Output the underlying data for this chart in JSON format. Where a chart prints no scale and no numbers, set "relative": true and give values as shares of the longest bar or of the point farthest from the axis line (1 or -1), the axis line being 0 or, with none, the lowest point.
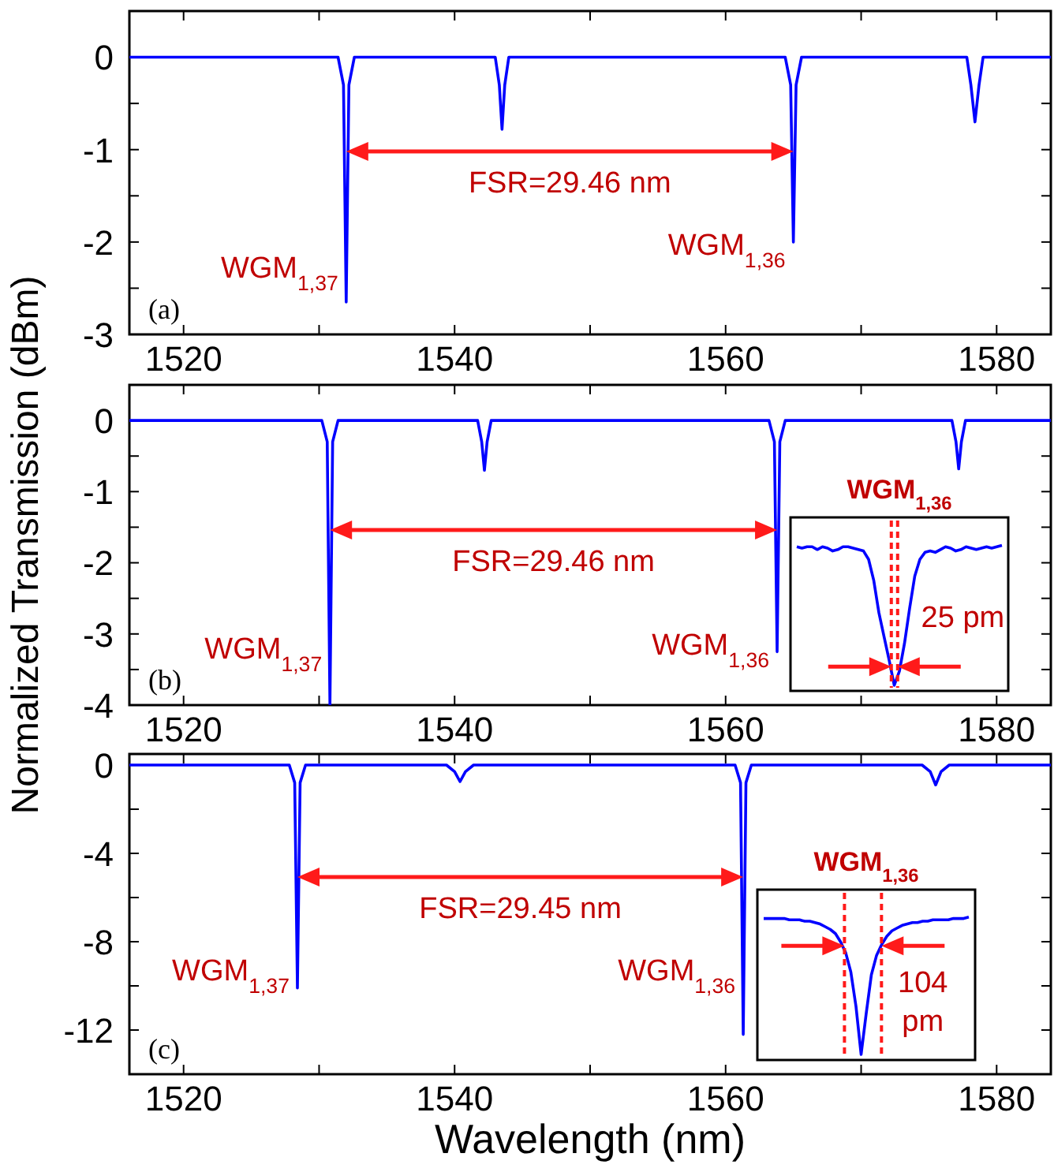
{
  "chart_data": [
    {
      "type": "line",
      "xlim": [
        1516,
        1584
      ],
      "xticks": [
        1520,
        {
          "value": 1530,
          "label": null
        },
        1540,
        {
          "value": 1550,
          "label": null
        },
        1560,
        {
          "value": 1570,
          "label": null
        },
        1580
      ],
      "ylim": [
        -3,
        0.5
      ],
      "yticks": [
        0,
        {
          "value": -0.5,
          "label": null
        },
        -1,
        {
          "value": -1.5,
          "label": null
        },
        -2,
        {
          "value": -2.5,
          "label": null
        },
        -3
      ],
      "x": [
        1516,
        1531.4,
        1531.8,
        1532.0,
        1532.2,
        1532.6,
        1543.0,
        1543.3,
        1543.5,
        1543.7,
        1544.0,
        1564.4,
        1564.8,
        1565.0,
        1565.2,
        1565.6,
        1577.8,
        1578.1,
        1578.4,
        1578.7,
        1579.0,
        1584
      ],
      "series": [
        {
          "color": "#0000ff",
          "values": [
            0,
            0,
            -0.3,
            -2.65,
            -0.3,
            0,
            0,
            -0.3,
            -0.78,
            -0.3,
            0,
            0,
            -0.3,
            -2.0,
            -0.3,
            0,
            0,
            -0.3,
            -0.7,
            -0.3,
            0,
            0
          ]
        }
      ],
      "annotations": [
        {
          "text": "WGM$_{1,37}$",
          "x": 1532.0,
          "y": -2.25
        },
        {
          "text": "WGM$_{1,36}$",
          "x": 1565.0,
          "y": -2.0
        },
        "FSR=29.46 nm",
        "(a)"
      ]
    },
    {
      "type": "line",
      "ylabel": "Normalized Transmission (dBm)",
      "xlim": [
        1516,
        1584
      ],
      "xticks": [
        1520,
        {
          "value": 1530,
          "label": null
        },
        1540,
        {
          "value": 1550,
          "label": null
        },
        1560,
        {
          "value": 1570,
          "label": null
        },
        1580
      ],
      "ylim": [
        -4,
        0.5
      ],
      "yticks": [
        0,
        {
          "value": -0.5,
          "label": null
        },
        -1,
        {
          "value": -1.5,
          "label": null
        },
        -2,
        {
          "value": -2.5,
          "label": null
        },
        -3,
        {
          "value": -3.5,
          "label": null
        },
        -4
      ],
      "x": [
        1516,
        1530.2,
        1530.6,
        1530.8,
        1531.0,
        1531.4,
        1541.7,
        1542.0,
        1542.2,
        1542.4,
        1542.7,
        1563.2,
        1563.6,
        1563.8,
        1564.0,
        1564.4,
        1576.7,
        1577.0,
        1577.2,
        1577.4,
        1577.7,
        1584
      ],
      "series": [
        {
          "color": "#0000ff",
          "values": [
            0,
            0,
            -0.3,
            -4.0,
            -0.3,
            0,
            0,
            -0.3,
            -0.7,
            -0.3,
            0,
            0,
            -0.3,
            -3.25,
            -0.3,
            0,
            0,
            -0.3,
            -0.68,
            -0.3,
            0,
            0
          ]
        }
      ],
      "annotations": [
        {
          "text": "WGM$_{1,37}$",
          "x": 1530.8,
          "y": -3.3
        },
        {
          "text": "WGM$_{1,36}$",
          "x": 1563.8,
          "y": -3.25
        },
        "FSR=29.46 nm",
        "(b)"
      ]
    },
    {
      "type": "line",
      "relative": true,
      "title": "WGM$_{1,36}$",
      "categories": [
        null,
        null,
        null,
        null,
        null,
        null,
        null,
        null,
        null,
        null,
        null,
        null,
        null,
        null,
        null,
        null,
        null,
        null,
        null,
        null,
        null,
        null,
        null,
        null,
        null,
        null,
        null,
        null,
        null,
        null,
        null,
        null,
        null,
        null,
        null,
        null,
        null,
        null,
        null,
        null,
        null
      ],
      "series": [
        {
          "color": "#0000ff",
          "values": [
            0.99,
            0.98,
            0.99,
            0.99,
            0.97,
            0.99,
            0.98,
            0.96,
            0.97,
            0.99,
            0.99,
            0.98,
            0.97,
            0.96,
            0.9,
            0.75,
            0.52,
            0.35,
            0.18,
            0,
            0.1,
            0.3,
            0.55,
            0.78,
            0.9,
            0.95,
            0.96,
            0.95,
            0.97,
            0.99,
            0.98,
            0.96,
            0.97,
            0.99,
            0.98,
            0.97,
            0.98,
            0.99,
            0.98,
            0.99,
            1.0
          ]
        }
      ],
      "annotations": [
        "25 pm"
      ]
    },
    {
      "type": "line",
      "xlabel": "Wavelength (nm)",
      "xlim": [
        1516,
        1584
      ],
      "xticks": [
        1520,
        {
          "value": 1530,
          "label": null
        },
        1540,
        {
          "value": 1550,
          "label": null
        },
        1560,
        {
          "value": 1570,
          "label": null
        },
        1580
      ],
      "ylim": [
        -14,
        0.5
      ],
      "yticks": [
        0,
        {
          "value": -2,
          "label": null
        },
        -4,
        {
          "value": -6,
          "label": null
        },
        -8,
        {
          "value": -10,
          "label": null
        },
        -12
      ],
      "x": [
        1516,
        1527.8,
        1528.2,
        1528.4,
        1528.6,
        1529.0,
        1539.4,
        1540.0,
        1540.4,
        1540.8,
        1541.4,
        1560.7,
        1561.1,
        1561.3,
        1561.5,
        1561.9,
        1574.5,
        1575.1,
        1575.5,
        1575.9,
        1576.5,
        1584
      ],
      "series": [
        {
          "color": "#0000ff",
          "values": [
            0,
            0,
            -0.8,
            -10.1,
            -0.8,
            0,
            0,
            -0.3,
            -0.75,
            -0.3,
            0,
            0,
            -0.8,
            -12.2,
            -0.8,
            0,
            0,
            -0.3,
            -0.9,
            -0.3,
            0,
            0
          ]
        }
      ],
      "annotations": [
        {
          "text": "WGM$_{1,37}$",
          "x": 1528.4,
          "y": -9.6
        },
        {
          "text": "WGM$_{1,36}$",
          "x": 1561.3,
          "y": -9.6
        },
        "FSR=29.45 nm",
        "(c)"
      ]
    },
    {
      "type": "line",
      "relative": true,
      "title": "WGM$_{1,36}$",
      "categories": [
        null,
        null,
        null,
        null,
        null,
        null,
        null,
        null,
        null,
        null,
        null,
        null,
        null,
        null,
        null,
        null,
        null,
        null,
        null,
        null,
        null,
        null,
        null,
        null,
        null,
        null,
        null,
        null,
        null,
        null,
        null,
        null,
        null,
        null,
        null,
        null,
        null,
        null,
        null,
        null,
        null
      ],
      "series": [
        {
          "color": "#0000ff",
          "values": [
            0.99,
            0.99,
            0.99,
            0.99,
            0.99,
            0.98,
            0.98,
            0.98,
            0.97,
            0.97,
            0.96,
            0.95,
            0.93,
            0.91,
            0.88,
            0.82,
            0.74,
            0.6,
            0.35,
            0,
            0.3,
            0.58,
            0.72,
            0.8,
            0.86,
            0.9,
            0.92,
            0.94,
            0.95,
            0.96,
            0.96,
            0.97,
            0.97,
            0.98,
            0.98,
            0.98,
            0.98,
            0.99,
            0.99,
            0.99,
            1.0
          ]
        }
      ],
      "annotations": [
        "104 pm"
      ]
    }
  ]
}
